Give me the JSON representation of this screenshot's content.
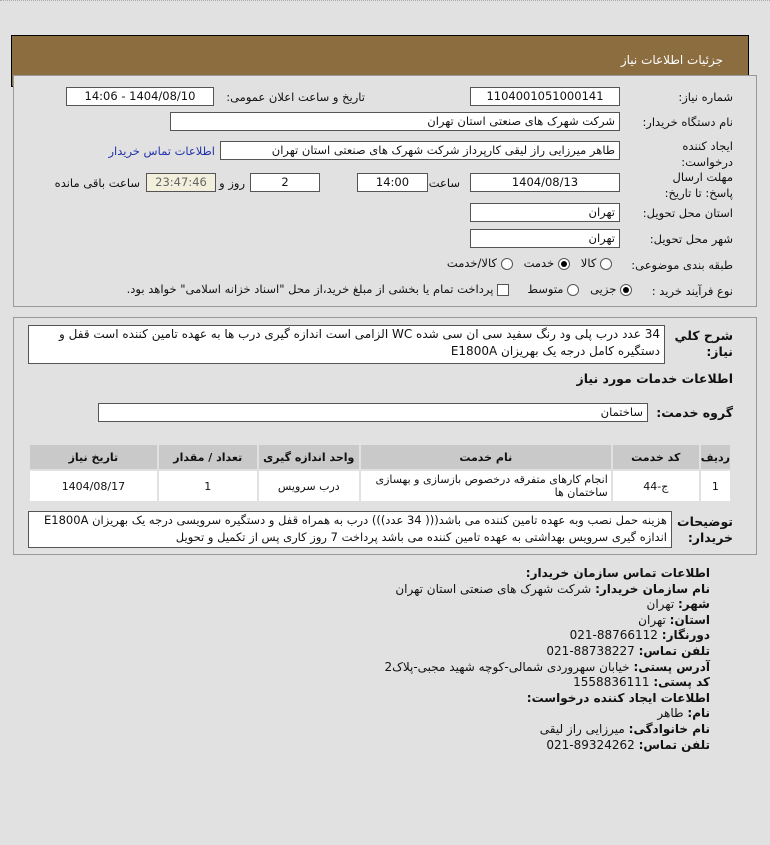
{
  "header": {
    "title": "جزئیات اطلاعات نیاز"
  },
  "form": {
    "need_number_label": "شماره نیاز:",
    "need_number": "1104001051000141",
    "announce_label": "تاریخ و ساعت اعلان عمومی:",
    "announce_value": "1404/08/10 - 14:06",
    "buyer_label": "نام دستگاه خریدار:",
    "buyer_value": "شرکت شهرک های صنعتی استان تهران",
    "creator_label": "ایجاد کننده درخواست:",
    "creator_value": "طاهر  میرزایی راز لیقی کارپرداز شرکت شهرک های صنعتی استان تهران",
    "contact_link": "اطلاعات تماس خریدار",
    "deadline_label": "مهلت ارسال پاسخ: تا تاریخ:",
    "deadline_date": "1404/08/13",
    "time_label": "ساعت",
    "deadline_time": "14:00",
    "days": "2",
    "days_label": "روز و",
    "remaining": "23:47:46",
    "remaining_label": "ساعت باقی مانده",
    "province_label": "استان محل تحویل:",
    "province": "تهران",
    "city_label": "شهر محل تحویل:",
    "city": "تهران",
    "category_label": "طبقه بندی موضوعی:",
    "category_options": [
      "کالا",
      "خدمت",
      "کالا/خدمت"
    ],
    "category_selected": 1,
    "process_label": "نوع فرآیند خرید :",
    "process_options": [
      "جزیی",
      "متوسط"
    ],
    "process_selected": 0,
    "payment_note": "پرداخت تمام یا بخشی از مبلغ خرید،از محل \"اسناد خزانه اسلامی\" خواهد بود."
  },
  "details": {
    "desc_label": "شرح کلي نیاز:",
    "desc": "34 عدد درب پلی ود رنگ سفید سی ان سی شده WC الزامی است اندازه گیری درب ها به عهده تامین کننده است قفل و دستگیره کامل درجه یک بهریزان E1800A",
    "services_title": "اطلاعات خدمات مورد نیاز",
    "group_label": "گروه خدمت:",
    "group": "ساختمان",
    "table": {
      "headers": [
        "ردیف",
        "کد خدمت",
        "نام خدمت",
        "واحد اندازه گیری",
        "تعداد / مقدار",
        "تاریخ نیاز"
      ],
      "rows": [
        [
          "1",
          "ج-44",
          "انجام کارهای متفرقه درخصوص بازسازی و بهسازی ساختمان ها",
          "درب سرویس",
          "1",
          "1404/08/17"
        ]
      ]
    },
    "notes_label": "توضیحات خریدار:",
    "notes": "هزینه حمل نصب وبه عهده تامین کننده می باشد((( 34 عدد))) درب به همراه قفل و دستگیره سرویسی درجه یک بهریزان E1800A اندازه گیری سرویس بهداشتی به عهده تامین کننده می باشد پرداخت 7 روز کاری پس از تکمیل و تحویل"
  },
  "contact": {
    "title": "اطلاعات تماس سازمان خریدار:",
    "org_label": "نام سازمان خریدار:",
    "org": "شرکت شهرک های صنعتی استان تهران",
    "city_label": "شهر:",
    "city": "تهران",
    "province_label": "استان:",
    "province": "تهران",
    "fax_label": "دورنگار:",
    "fax": "88766112-021",
    "phone_label": "تلفن تماس:",
    "phone": "88738227-021",
    "address_label": "آدرس پستی:",
    "address": "خیابان سهروردی شمالی-کوچه شهید مجبی-پلاک2",
    "postal_label": "کد پستی:",
    "postal": "1558836111",
    "creator_title": "اطلاعات ایجاد کننده درخواست:",
    "name_label": "نام:",
    "name": "طاهر",
    "family_label": "نام خانوادگی:",
    "family": "میرزایی راز لیقی",
    "cphone_label": "تلفن تماس:",
    "cphone": "89324262-021"
  }
}
